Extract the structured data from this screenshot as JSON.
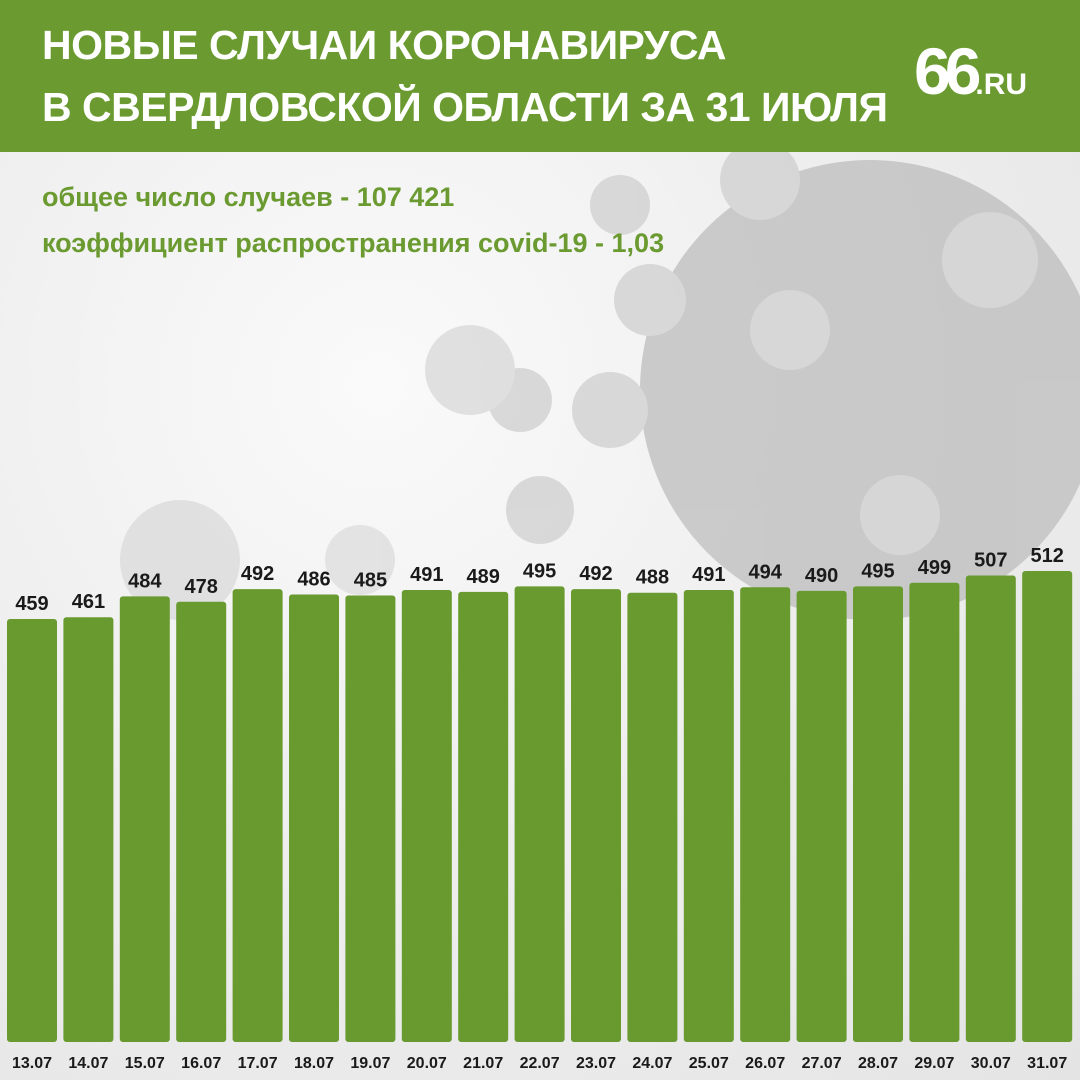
{
  "header": {
    "title_line1": "НОВЫЕ СЛУЧАИ КОРОНАВИРУСА",
    "title_line2": "В СВЕРДЛОВСКОЙ ОБЛАСТИ ЗА 31 ИЮЛЯ",
    "logo_number": "66",
    "logo_suffix": "RU"
  },
  "stats": {
    "total_cases": "общее число случаев -  107 421",
    "spread_rate": "коэффициент распространения covid-19 - 1,03"
  },
  "colors": {
    "brand_green": "#6a9a30",
    "bar_green": "#689a30",
    "text_dark": "#1a1a1a",
    "background": "#f2f2f2"
  },
  "chart_data": {
    "type": "bar",
    "categories": [
      "13.07",
      "14.07",
      "15.07",
      "16.07",
      "17.07",
      "18.07",
      "19.07",
      "20.07",
      "21.07",
      "22.07",
      "23.07",
      "24.07",
      "25.07",
      "26.07",
      "27.07",
      "28.07",
      "29.07",
      "30.07",
      "31.07"
    ],
    "values": [
      459,
      461,
      484,
      478,
      492,
      486,
      485,
      491,
      489,
      495,
      492,
      488,
      491,
      494,
      490,
      495,
      499,
      507,
      512
    ],
    "title": "",
    "xlabel": "",
    "ylabel": "",
    "grid": false,
    "legend": "none"
  }
}
